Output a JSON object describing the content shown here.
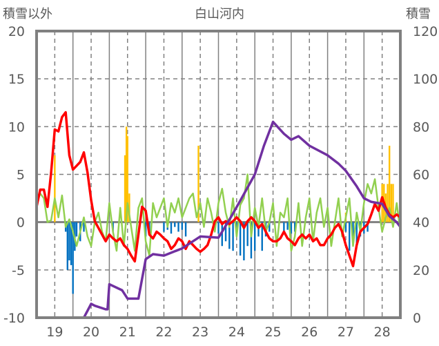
{
  "chart_data": {
    "type": "line",
    "title": "白山河内",
    "ylabel_left": "積雪以外",
    "ylabel_right": "積雪",
    "xlim": [
      18.5,
      28.5
    ],
    "ylim_left": [
      -10,
      20
    ],
    "ylim_right": [
      0,
      120
    ],
    "x_ticks": [
      "19",
      "20",
      "21",
      "22",
      "23",
      "24",
      "25",
      "26",
      "27",
      "28"
    ],
    "y_ticks_left": [
      "20",
      "15",
      "10",
      "5",
      "0",
      "-5",
      "-10"
    ],
    "y_ticks_right": [
      "120",
      "100",
      "80",
      "60",
      "40",
      "20",
      "0"
    ],
    "grid": true,
    "colors": {
      "red": "#ff0000",
      "green": "#92d050",
      "purple": "#7030a0",
      "orange": "#ffc000",
      "blue": "#0070c0",
      "frame": "#808080",
      "grid": "#808080"
    },
    "series": [
      {
        "name": "red",
        "axis": "left",
        "x_start": 18.5,
        "x_step": 0.1,
        "values": [
          1.6,
          3.4,
          3.4,
          1.6,
          5.2,
          9.7,
          9.5,
          11,
          11.5,
          7,
          5.5,
          5.9,
          6.3,
          7.3,
          5.2,
          2.3,
          0.1,
          -0.6,
          -1.3,
          -2,
          -1.3,
          -1.7,
          -2,
          -1.7,
          -2.4,
          -2.8,
          -3.5,
          -4.1,
          -1.3,
          1.6,
          1.2,
          -1.3,
          -1.7,
          -1,
          -1.3,
          -1.7,
          -2,
          -2.8,
          -2.4,
          -1.7,
          -2,
          -2.8,
          -2,
          -2.4,
          -2.8,
          -3.1,
          -2.8,
          -2.4,
          -1.3,
          0.1,
          0.5,
          -0.2,
          0.1,
          -0.2,
          0.1,
          0.5,
          0.1,
          -0.6,
          0.1,
          0.5,
          0.1,
          -0.6,
          -0.2,
          -1,
          -1.7,
          -2,
          -2,
          -1.7,
          -1,
          -1.7,
          -2,
          -2.4,
          -1.7,
          -1.3,
          -1.7,
          -1.3,
          -2,
          -1.7,
          -2.4,
          -2.4,
          -1.7,
          -1.3,
          -0.6,
          -0.2,
          -1,
          -2.4,
          -3.5,
          -4.6,
          -2.4,
          -1,
          -0.6,
          -0.2,
          0.8,
          1.9,
          1.2,
          2.6,
          1.5,
          0.8,
          0.5,
          0.8,
          0.5,
          0.2,
          -0.2,
          0.1,
          0.8,
          2.2,
          3,
          2.2,
          0.5,
          -1.2,
          -1
        ]
      },
      {
        "name": "green",
        "axis": "left",
        "x_start": 18.5,
        "x_step": 0.1,
        "values": [
          2,
          3,
          2.5,
          0,
          0.2,
          2.5,
          0.5,
          2.8,
          -0.5,
          0.3,
          -1,
          -2.5,
          -1,
          0.5,
          -1.5,
          -2.5,
          0,
          1,
          -1,
          -2,
          2,
          -1,
          -3,
          1.5,
          -2.5,
          2,
          -0.5,
          -3,
          1.5,
          2.5,
          -2,
          -3.5,
          2,
          0.5,
          1.5,
          2.5,
          -0.5,
          2,
          1,
          2.5,
          0.5,
          1.5,
          2.5,
          3,
          0.5,
          2,
          -0.5,
          2.5,
          1,
          -1,
          2,
          3.5,
          1,
          -0.5,
          2.5,
          -1.5,
          1.8,
          2.5,
          5,
          -1.5,
          1.5,
          -0.5,
          2.5,
          -1,
          0,
          2,
          -2.5,
          1,
          0.5,
          2.5,
          -3,
          -1.5,
          2,
          -2.5,
          0.5,
          2.5,
          -2,
          1,
          2.5,
          -0.5,
          1.5,
          -2.5,
          0,
          2.5,
          -1.5,
          0.5,
          2.5,
          -2.5,
          1,
          -1,
          2,
          4,
          3,
          4.5,
          1.5,
          -1,
          0.5,
          1.5,
          -0.5,
          2,
          -1,
          1,
          0.5,
          2,
          -0.5,
          1,
          -2.5,
          -2,
          -0.5,
          1,
          0.2
        ]
      },
      {
        "name": "purple",
        "axis": "right",
        "x": [
          18.5,
          19.8,
          20.0,
          20.1,
          20.4,
          20.45,
          20.5,
          20.85,
          21.0,
          21.3,
          21.5,
          21.7,
          22.0,
          22.5,
          23.0,
          23.5,
          23.8,
          24.1,
          24.5,
          24.75,
          25.0,
          25.3,
          25.5,
          25.7,
          26.0,
          26.5,
          26.8,
          27.0,
          27.3,
          27.5,
          27.7,
          28.0,
          28.2,
          28.4,
          28.5
        ],
        "values": [
          0,
          0,
          5.8,
          5,
          3.5,
          3.5,
          14,
          11.5,
          8,
          8,
          24.5,
          26.6,
          26,
          29,
          34,
          33.5,
          41,
          49,
          60,
          72,
          82,
          77,
          74.5,
          76,
          72,
          68,
          64.5,
          61.5,
          55,
          50,
          48.5,
          47.7,
          42.5,
          40,
          38
        ]
      }
    ],
    "bars": [
      {
        "name": "orange",
        "axis": "left",
        "x": [
          19.0,
          20.93,
          20.97,
          21.0,
          21.05,
          22.95,
          27.0,
          28.0,
          28.05,
          28.1,
          28.15,
          28.2,
          28.25,
          28.3
        ],
        "values": [
          7,
          7,
          10,
          9,
          3,
          8,
          1,
          4,
          4,
          3,
          4,
          8,
          4,
          4
        ]
      },
      {
        "name": "blue",
        "axis": "left",
        "x": [
          19.3,
          19.35,
          19.4,
          19.45,
          19.5,
          19.55,
          19.6,
          19.7,
          19.8,
          20.6,
          21.5,
          21.6,
          22.0,
          22.1,
          22.2,
          22.3,
          22.4,
          22.5,
          22.6,
          23.5,
          23.6,
          23.7,
          23.8,
          23.9,
          24.0,
          24.1,
          24.2,
          24.3,
          24.4,
          24.5,
          24.6,
          24.7,
          24.8,
          24.9,
          25.3,
          25.4,
          25.5,
          25.6,
          27.0,
          27.1,
          27.2,
          27.3,
          27.4,
          27.5,
          27.6
        ],
        "values": [
          -1,
          -5,
          -4,
          -4.5,
          -7.5,
          -3,
          -1.5,
          -2,
          -1,
          -1,
          -1.5,
          -1,
          -1,
          -0.8,
          -1.2,
          -0.5,
          -1,
          -0.8,
          -1.5,
          -1.2,
          -2.5,
          -2,
          -2.8,
          -3,
          -1.5,
          -3.5,
          -4,
          -2.5,
          -3.8,
          -3,
          -1.5,
          -3,
          -1.5,
          -1,
          -1,
          -0.8,
          -1.2,
          -1,
          -1,
          -3,
          -2,
          -2.5,
          -1.5,
          -1.2,
          -1
        ]
      }
    ]
  }
}
